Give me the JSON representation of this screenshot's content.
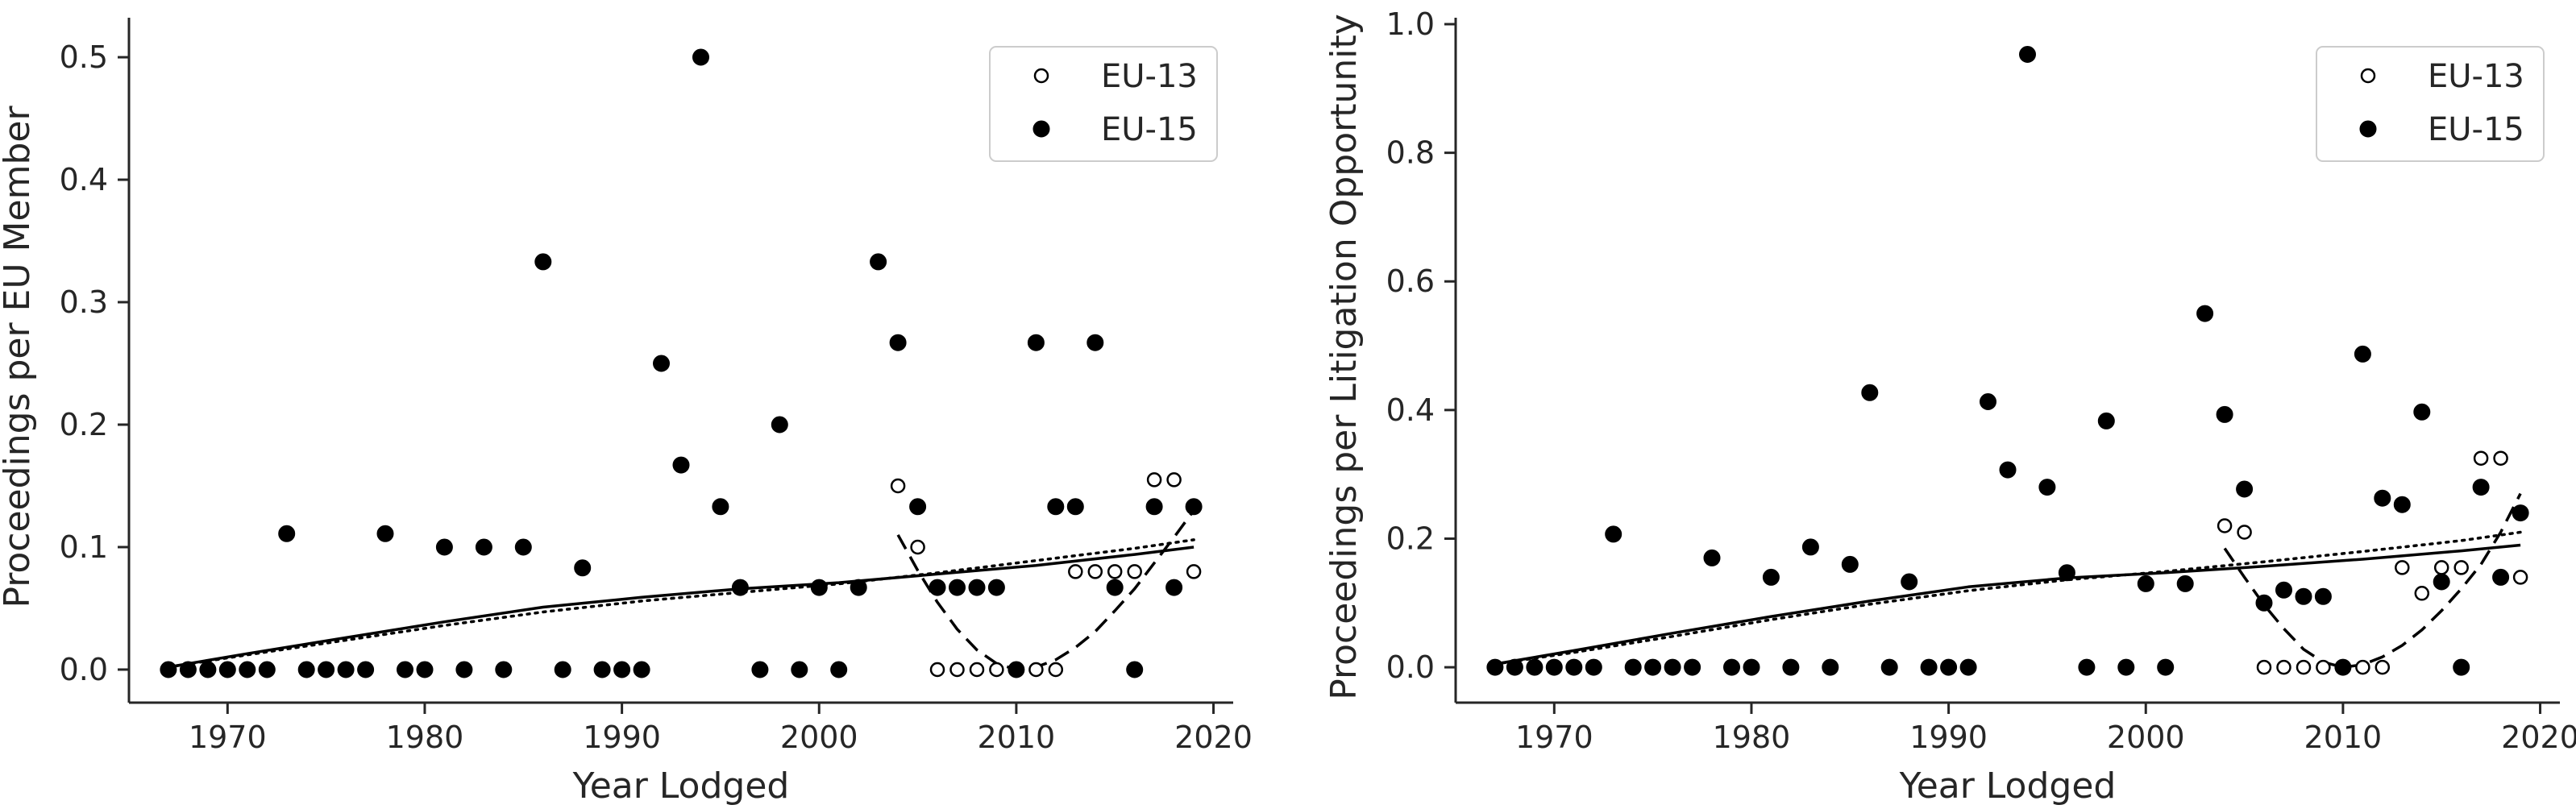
{
  "chart_data": [
    {
      "type": "scatter",
      "xlabel": "Year Lodged",
      "ylabel": "Proceedings per EU Member",
      "xlim": [
        1965,
        2021
      ],
      "ylim": [
        -0.027,
        0.527
      ],
      "xticks": [
        1970,
        1980,
        1990,
        2000,
        2010,
        2020
      ],
      "yticks": [
        0.0,
        0.1,
        0.2,
        0.3,
        0.4,
        0.5
      ],
      "ytick_decimals": 1,
      "grid": false,
      "legend_position": "top-right",
      "series": [
        {
          "name": "EU-13",
          "marker": "open-circle",
          "x": [
            2004,
            2005,
            2006,
            2007,
            2008,
            2009,
            2010,
            2011,
            2012,
            2013,
            2014,
            2015,
            2016,
            2017,
            2018,
            2019
          ],
          "y": [
            0.15,
            0.1,
            0.0,
            0.0,
            0.0,
            0.0,
            0.0,
            0.0,
            0.0,
            0.08,
            0.08,
            0.08,
            0.08,
            0.155,
            0.155,
            0.08
          ]
        },
        {
          "name": "EU-15",
          "marker": "filled-circle",
          "x": [
            1967,
            1968,
            1969,
            1970,
            1971,
            1972,
            1973,
            1974,
            1975,
            1976,
            1977,
            1978,
            1979,
            1980,
            1981,
            1982,
            1983,
            1984,
            1985,
            1986,
            1987,
            1988,
            1989,
            1990,
            1991,
            1992,
            1993,
            1994,
            1995,
            1996,
            1997,
            1998,
            1999,
            2000,
            2001,
            2002,
            2003,
            2004,
            2005,
            2006,
            2007,
            2008,
            2009,
            2010,
            2011,
            2012,
            2013,
            2014,
            2015,
            2016,
            2017,
            2018,
            2019
          ],
          "y": [
            0.0,
            0.0,
            0.0,
            0.0,
            0.0,
            0.0,
            0.111,
            0.0,
            0.0,
            0.0,
            0.0,
            0.111,
            0.0,
            0.0,
            0.1,
            0.0,
            0.1,
            0.0,
            0.1,
            0.333,
            0.0,
            0.083,
            0.0,
            0.0,
            0.0,
            0.25,
            0.167,
            0.5,
            0.133,
            0.067,
            0.0,
            0.2,
            0.0,
            0.067,
            0.0,
            0.067,
            0.333,
            0.267,
            0.133,
            0.067,
            0.067,
            0.067,
            0.067,
            0.0,
            0.267,
            0.133,
            0.133,
            0.267,
            0.067,
            0.0,
            0.133,
            0.067,
            0.133
          ]
        }
      ],
      "trend_lines": [
        {
          "style": "solid",
          "x": [
            1967,
            1971,
            1976,
            1981,
            1986,
            1991,
            1996,
            2001,
            2006,
            2011,
            2016,
            2019
          ],
          "y": [
            0.002,
            0.013,
            0.026,
            0.039,
            0.051,
            0.059,
            0.066,
            0.071,
            0.078,
            0.085,
            0.094,
            0.1
          ]
        },
        {
          "style": "dotted",
          "x": [
            1967,
            1971,
            1976,
            1981,
            1986,
            1991,
            1996,
            2001,
            2006,
            2011,
            2016,
            2019
          ],
          "y": [
            0.002,
            0.012,
            0.024,
            0.036,
            0.047,
            0.056,
            0.063,
            0.07,
            0.079,
            0.089,
            0.099,
            0.106
          ]
        },
        {
          "style": "dashed",
          "x": [
            2004,
            2005,
            2006,
            2007,
            2008,
            2009,
            2010,
            2011,
            2012,
            2013,
            2014,
            2015,
            2016,
            2017,
            2018,
            2019
          ],
          "y": [
            0.11,
            0.081,
            0.055,
            0.033,
            0.016,
            0.005,
            0.0,
            0.002,
            0.008,
            0.018,
            0.031,
            0.048,
            0.066,
            0.087,
            0.108,
            0.13
          ]
        }
      ]
    },
    {
      "type": "scatter",
      "xlabel": "Year Lodged",
      "ylabel": "Proceedings per Litigation Opportunity",
      "xlim": [
        1965,
        2021
      ],
      "ylim": [
        -0.055,
        1.0
      ],
      "xticks": [
        1970,
        1980,
        1990,
        2000,
        2010,
        2020
      ],
      "yticks": [
        0.0,
        0.2,
        0.4,
        0.6,
        0.8,
        1.0
      ],
      "ytick_decimals": 1,
      "grid": false,
      "legend_position": "top-right",
      "series": [
        {
          "name": "EU-13",
          "marker": "open-circle",
          "x": [
            2004,
            2005,
            2006,
            2007,
            2008,
            2009,
            2010,
            2011,
            2012,
            2013,
            2014,
            2015,
            2016,
            2017,
            2018,
            2019
          ],
          "y": [
            0.22,
            0.21,
            0.0,
            0.0,
            0.0,
            0.0,
            0.0,
            0.0,
            0.0,
            0.155,
            0.115,
            0.155,
            0.155,
            0.325,
            0.325,
            0.14
          ]
        },
        {
          "name": "EU-15",
          "marker": "filled-circle",
          "x": [
            1967,
            1968,
            1969,
            1970,
            1971,
            1972,
            1973,
            1974,
            1975,
            1976,
            1977,
            1978,
            1979,
            1980,
            1981,
            1982,
            1983,
            1984,
            1985,
            1986,
            1987,
            1988,
            1989,
            1990,
            1991,
            1992,
            1993,
            1994,
            1995,
            1996,
            1997,
            1998,
            1999,
            2000,
            2001,
            2002,
            2003,
            2004,
            2005,
            2006,
            2007,
            2008,
            2009,
            2010,
            2011,
            2012,
            2013,
            2014,
            2015,
            2016,
            2017,
            2018,
            2019
          ],
          "y": [
            0.0,
            0.0,
            0.0,
            0.0,
            0.0,
            0.0,
            0.207,
            0.0,
            0.0,
            0.0,
            0.0,
            0.17,
            0.0,
            0.0,
            0.14,
            0.0,
            0.187,
            0.0,
            0.16,
            0.427,
            0.0,
            0.133,
            0.0,
            0.0,
            0.0,
            0.413,
            0.307,
            0.953,
            0.28,
            0.147,
            0.0,
            0.383,
            0.0,
            0.13,
            0.0,
            0.13,
            0.55,
            0.393,
            0.277,
            0.1,
            0.12,
            0.11,
            0.11,
            0.0,
            0.487,
            0.263,
            0.253,
            0.397,
            0.133,
            0.0,
            0.28,
            0.14,
            0.24
          ]
        }
      ],
      "trend_lines": [
        {
          "style": "solid",
          "x": [
            1967,
            1971,
            1976,
            1981,
            1986,
            1991,
            1996,
            2001,
            2006,
            2011,
            2016,
            2019
          ],
          "y": [
            0.005,
            0.026,
            0.053,
            0.079,
            0.103,
            0.125,
            0.139,
            0.147,
            0.157,
            0.168,
            0.181,
            0.19
          ]
        },
        {
          "style": "dotted",
          "x": [
            1967,
            1971,
            1976,
            1981,
            1986,
            1991,
            1996,
            2001,
            2006,
            2011,
            2016,
            2019
          ],
          "y": [
            0.005,
            0.023,
            0.048,
            0.074,
            0.098,
            0.119,
            0.136,
            0.149,
            0.164,
            0.18,
            0.197,
            0.21
          ]
        },
        {
          "style": "dashed",
          "x": [
            2004,
            2005,
            2006,
            2007,
            2008,
            2009,
            2010,
            2011,
            2012,
            2013,
            2014,
            2015,
            2016,
            2017,
            2018,
            2019
          ],
          "y": [
            0.185,
            0.14,
            0.097,
            0.06,
            0.028,
            0.008,
            0.0,
            0.004,
            0.016,
            0.034,
            0.058,
            0.088,
            0.122,
            0.16,
            0.21,
            0.27
          ]
        }
      ]
    }
  ]
}
